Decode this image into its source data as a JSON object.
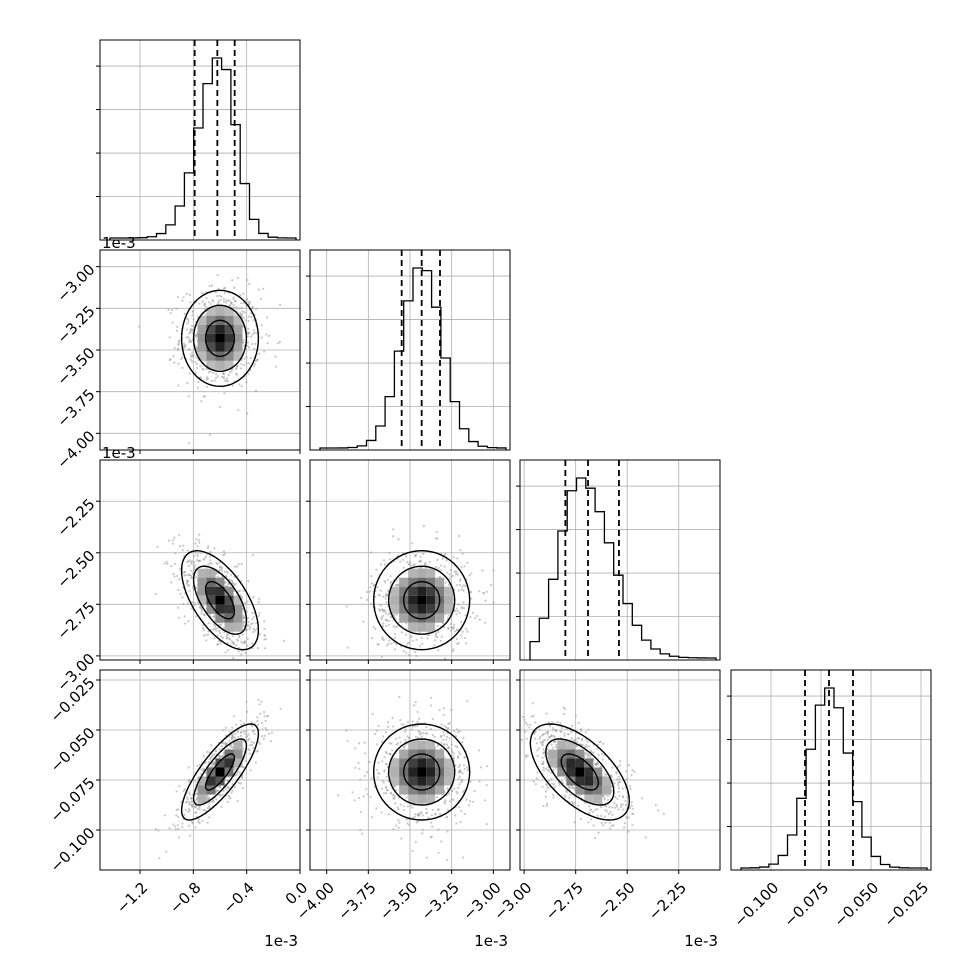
{
  "chart_data": {
    "type": "corner",
    "parameters": [
      {
        "scale_label": "1e-3",
        "range": [
          -1.5,
          0.0
        ],
        "ticks": [
          -1.2,
          -0.8,
          -0.4,
          0.0
        ],
        "tick_labels": [
          "−1.2",
          "−0.8",
          "−0.4",
          "0.0"
        ],
        "center": -0.6,
        "std": 0.12,
        "quantiles": [
          -0.79,
          -0.62,
          -0.49
        ]
      },
      {
        "scale_label": "1e-3",
        "range": [
          -4.1,
          -2.9
        ],
        "ticks": [
          -4.0,
          -3.75,
          -3.5,
          -3.25,
          -3.0
        ],
        "tick_labels": [
          "−4.00",
          "−3.75",
          "−3.50",
          "−3.25",
          "−3.00"
        ],
        "center": -3.43,
        "std": 0.12,
        "quantiles": [
          -3.55,
          -3.43,
          -3.32
        ]
      },
      {
        "scale_label": "1e-3",
        "range": [
          -3.02,
          -2.05
        ],
        "ticks": [
          -3.0,
          -2.75,
          -2.5,
          -2.25
        ],
        "tick_labels": [
          "−3.00",
          "−2.75",
          "−2.50",
          "−2.25"
        ],
        "center": -2.73,
        "std": 0.1,
        "quantiles": [
          -2.8,
          -2.69,
          -2.54
        ]
      },
      {
        "scale_label": "",
        "range": [
          -0.12,
          -0.02
        ],
        "ticks": [
          -0.1,
          -0.075,
          -0.05,
          -0.025
        ],
        "tick_labels": [
          "−0.100",
          "−0.075",
          "−0.050",
          "−0.025"
        ],
        "center": -0.071,
        "std": 0.01,
        "quantiles": [
          -0.083,
          -0.071,
          -0.059
        ]
      }
    ],
    "y_axis_labels": {
      "row1": {
        "scale_label": "1e-3",
        "ticks": [
          -3.0,
          -3.25,
          -3.5,
          -3.75,
          -4.0
        ],
        "tick_labels": [
          "−3.00",
          "−3.25",
          "−3.50",
          "−3.75",
          "−4.00"
        ]
      },
      "row2": {
        "scale_label": "1e-3",
        "ticks": [
          -2.25,
          -2.5,
          -2.75,
          -3.0
        ],
        "tick_labels": [
          "−2.25",
          "−2.50",
          "−2.75",
          "−3.00"
        ]
      },
      "row3": {
        "scale_label": "",
        "ticks": [
          -0.025,
          -0.05,
          -0.075,
          -0.1
        ],
        "tick_labels": [
          "−0.025",
          "−0.050",
          "−0.075",
          "−0.100"
        ]
      }
    },
    "correlations": {
      "1-0": 0.0,
      "2-0": -0.6,
      "2-1": 0.0,
      "3-0": 0.8,
      "3-1": 0.0,
      "3-2": -0.6
    },
    "grid": true,
    "histogram_bins": 20,
    "quantile_lines": "dashed",
    "contour_levels": 3
  }
}
